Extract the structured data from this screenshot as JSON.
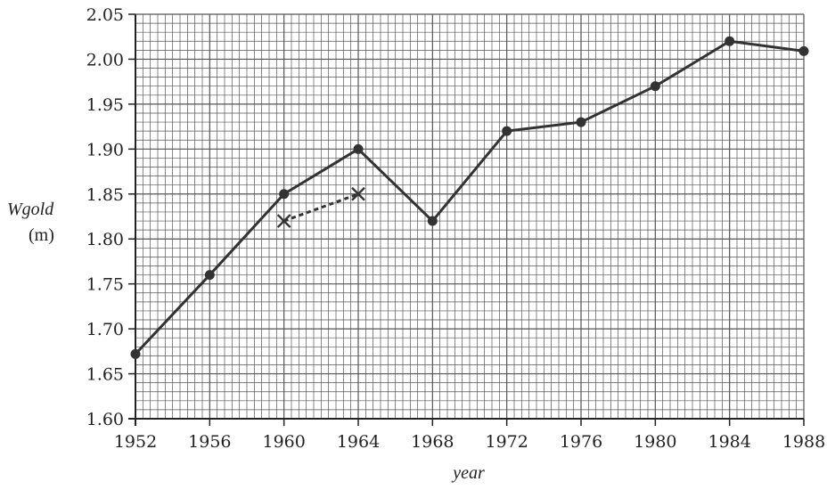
{
  "chart_data": {
    "type": "line",
    "title": "",
    "xlabel": "year",
    "ylabel": "Wgold",
    "yunit": "(m)",
    "xlim": [
      1952,
      1988
    ],
    "ylim": [
      1.6,
      2.05
    ],
    "x_ticks": [
      1952,
      1956,
      1960,
      1964,
      1968,
      1972,
      1976,
      1980,
      1984,
      1988
    ],
    "y_ticks": [
      "1.60",
      "1.65",
      "1.70",
      "1.75",
      "1.80",
      "1.85",
      "1.90",
      "1.95",
      "2.00",
      "2.05"
    ],
    "grid": true,
    "series": [
      {
        "style": "solid-with-dots",
        "x": [
          1952,
          1956,
          1960,
          1964,
          1968,
          1972,
          1976,
          1980,
          1984,
          1988
        ],
        "y": [
          1.672,
          1.76,
          1.85,
          1.9,
          1.82,
          1.92,
          1.93,
          1.97,
          2.02,
          2.009
        ]
      },
      {
        "style": "dashed-with-crosses",
        "x": [
          1960,
          1964
        ],
        "y": [
          1.82,
          1.85
        ]
      }
    ],
    "colors": {
      "line": "#333333",
      "grid": "#555555",
      "axis": "#222222"
    }
  }
}
